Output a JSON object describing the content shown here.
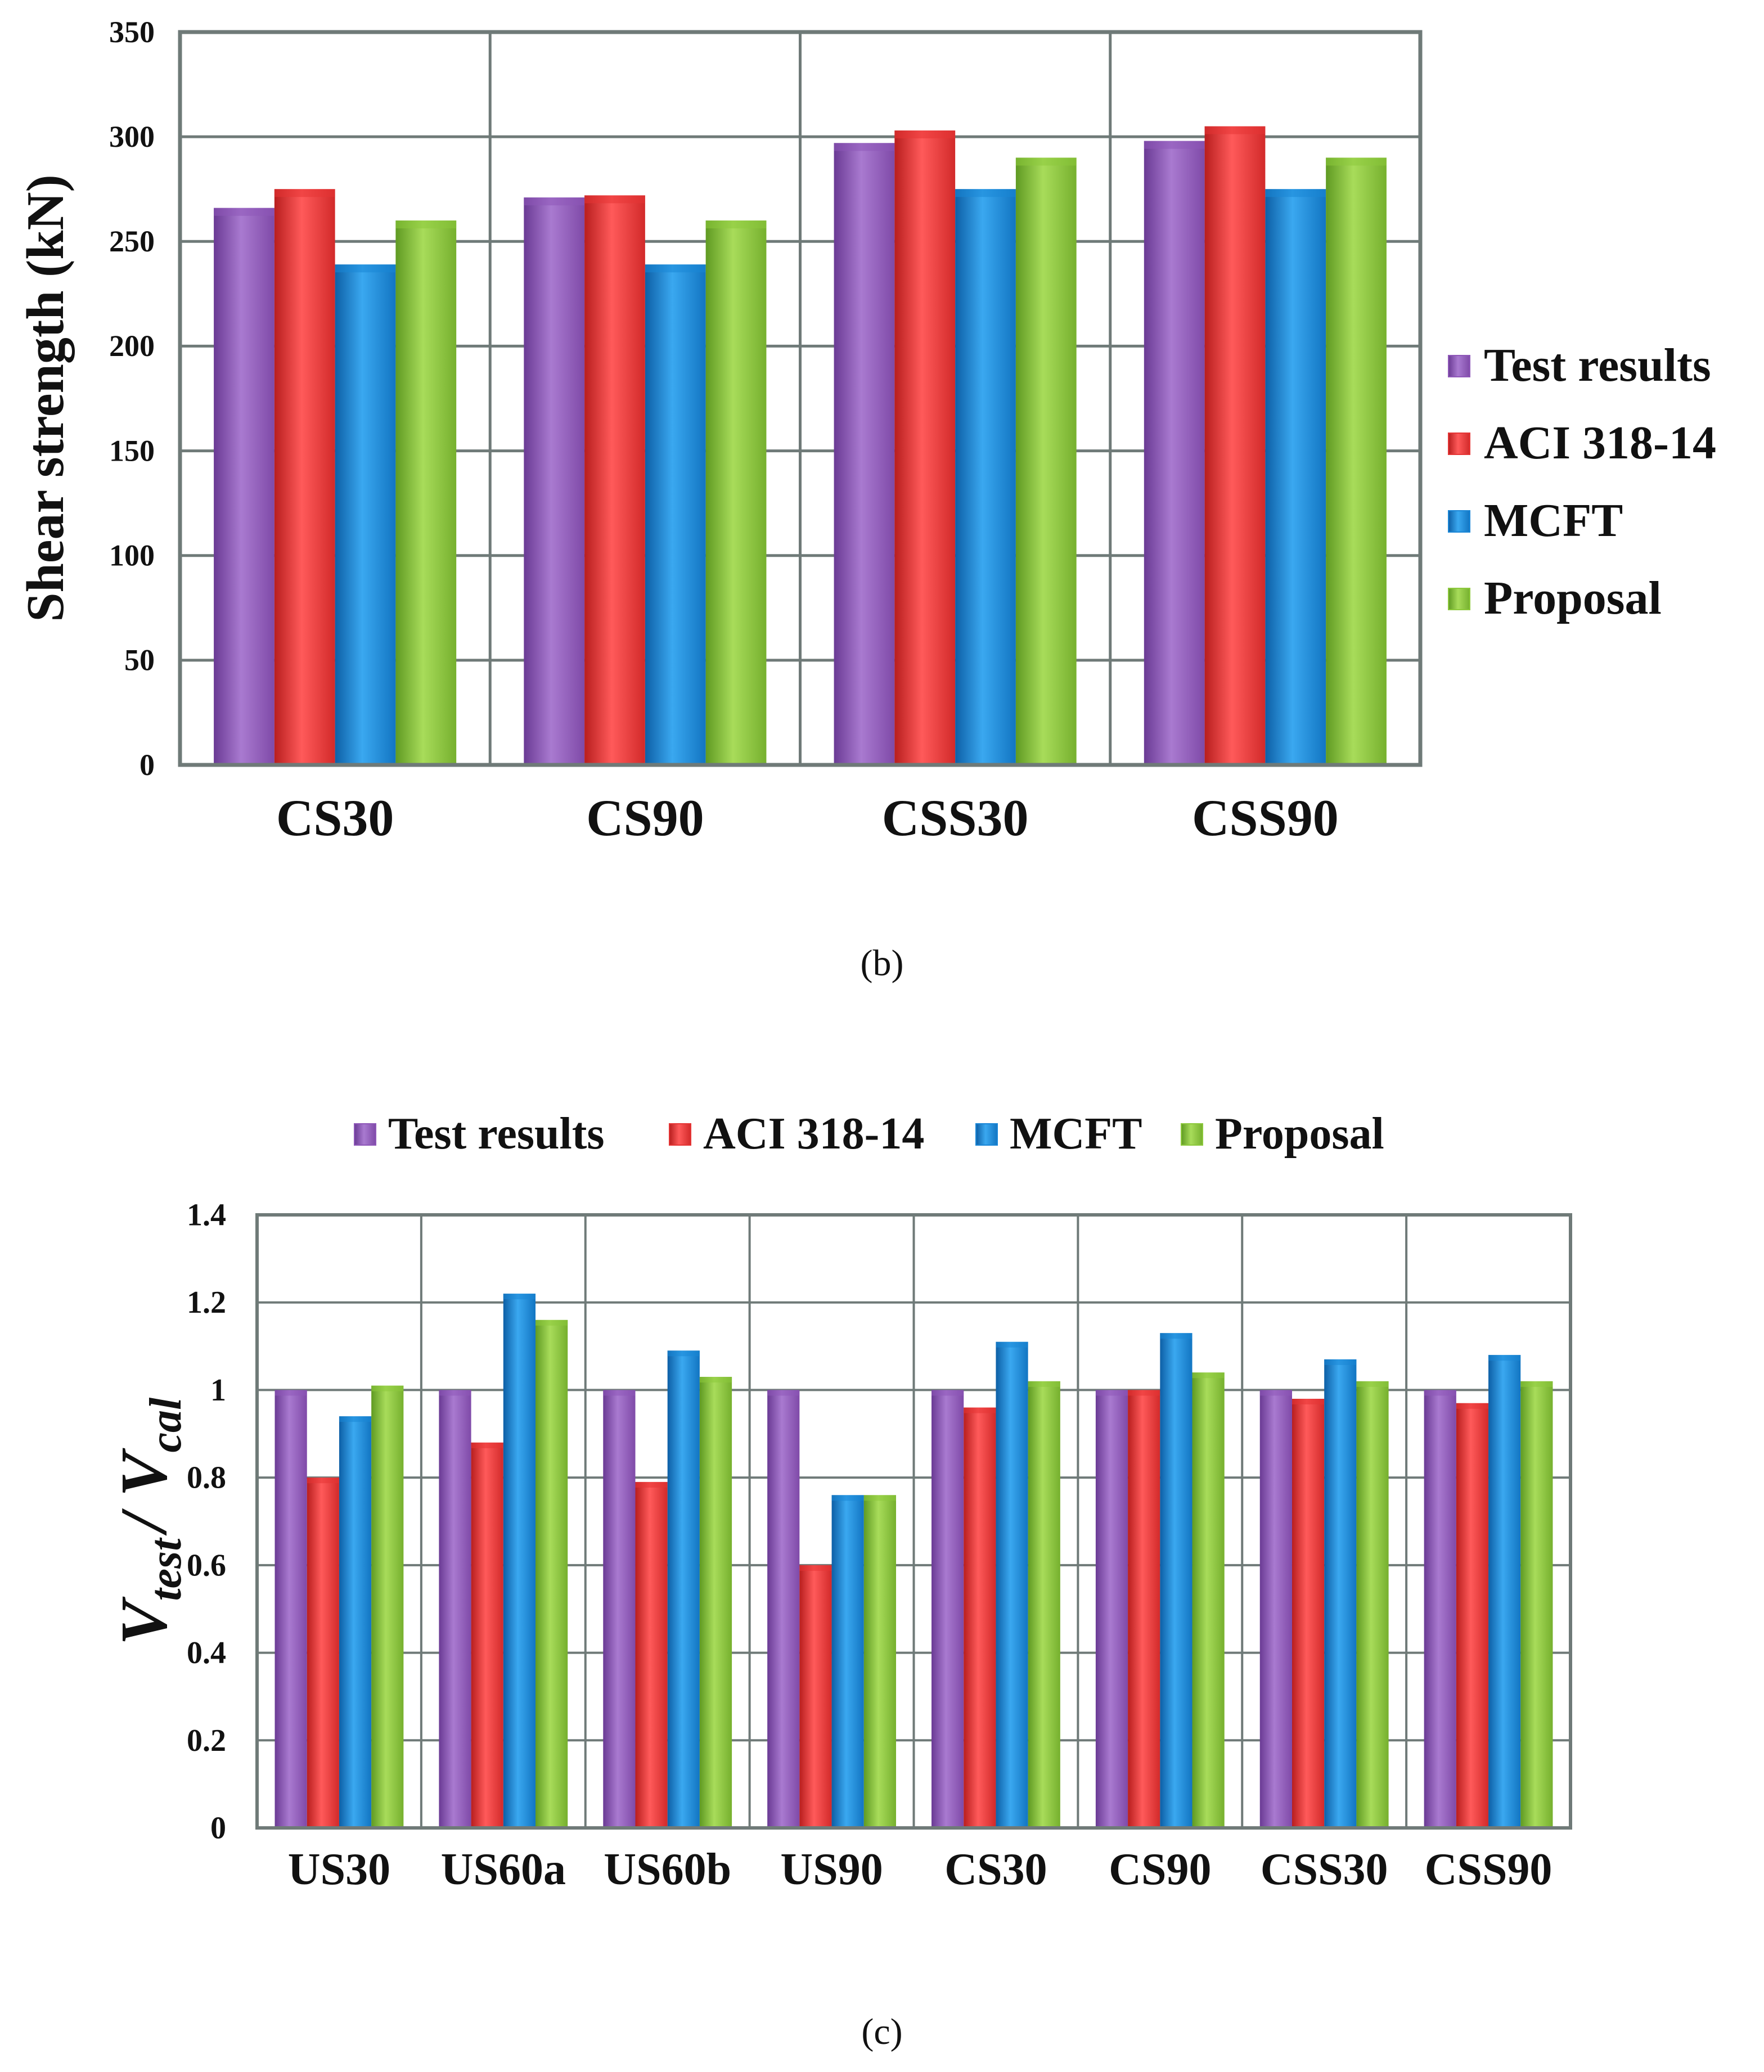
{
  "figure": {
    "panel_b_caption": "(b)",
    "panel_c_caption": "(c)"
  },
  "chart_data": [
    {
      "id": "panel-b",
      "type": "bar",
      "title": "",
      "xlabel": "",
      "ylabel": "Shear strength (kN)",
      "ylim": [
        0,
        350
      ],
      "yticks": [
        0,
        50,
        100,
        150,
        200,
        250,
        300,
        350
      ],
      "ytick_labels": [
        "0",
        "50",
        "100",
        "150",
        "200",
        "250",
        "300",
        "350"
      ],
      "grid": true,
      "legend_position": "right",
      "categories": [
        "CS30",
        "CS90",
        "CSS30",
        "CSS90"
      ],
      "series": [
        {
          "name": "Test results",
          "color": "#8e57b8",
          "values": [
            266,
            271,
            297,
            298
          ]
        },
        {
          "name": "ACI 318-14",
          "color": "#e53535",
          "values": [
            275,
            272,
            303,
            305
          ]
        },
        {
          "name": "MCFT",
          "color": "#1a86d6",
          "values": [
            239,
            239,
            275,
            275
          ]
        },
        {
          "name": "Proposal",
          "color": "#8cc83c",
          "values": [
            260,
            260,
            290,
            290
          ]
        }
      ]
    },
    {
      "id": "panel-c",
      "type": "bar",
      "title": "",
      "xlabel": "",
      "ylabel_main": "V",
      "ylabel_sub1": "test",
      "ylabel_sep": "/ V",
      "ylabel_sub2": "cal",
      "ylim": [
        0,
        1.4
      ],
      "yticks": [
        0,
        0.2,
        0.4,
        0.6,
        0.8,
        1.0,
        1.2,
        1.4
      ],
      "ytick_labels": [
        "0",
        "0.2",
        "0.4",
        "0.6",
        "0.8",
        "1",
        "1.2",
        "1.4"
      ],
      "grid": true,
      "legend_position": "top",
      "categories": [
        "US30",
        "US60a",
        "US60b",
        "US90",
        "CS30",
        "CS90",
        "CSS30",
        "CSS90"
      ],
      "series": [
        {
          "name": "Test results",
          "color": "#8e57b8",
          "values": [
            1.0,
            1.0,
            1.0,
            1.0,
            1.0,
            1.0,
            1.0,
            1.0
          ]
        },
        {
          "name": "ACI 318-14",
          "color": "#e53535",
          "values": [
            0.8,
            0.88,
            0.79,
            0.6,
            0.96,
            1.0,
            0.98,
            0.97
          ]
        },
        {
          "name": "MCFT",
          "color": "#1a86d6",
          "values": [
            0.94,
            1.22,
            1.09,
            0.76,
            1.11,
            1.13,
            1.07,
            1.08
          ]
        },
        {
          "name": "Proposal",
          "color": "#8cc83c",
          "values": [
            1.01,
            1.16,
            1.03,
            0.76,
            1.02,
            1.04,
            1.02,
            1.02
          ]
        }
      ]
    }
  ]
}
